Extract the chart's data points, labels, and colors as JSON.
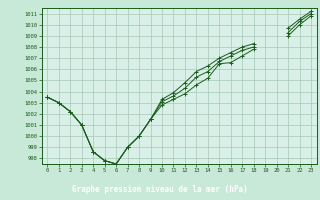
{
  "bg_color": "#c8e8d8",
  "plot_bg_color": "#d8f0e8",
  "grid_color": "#a8c8b8",
  "line_color": "#1a5c1a",
  "title_bg": "#2a6e2a",
  "title_text_color": "#ffffff",
  "title": "Graphe pression niveau de la mer (hPa)",
  "xlim": [
    -0.5,
    23.5
  ],
  "ylim": [
    997.5,
    1011.5
  ],
  "yticks": [
    998,
    999,
    1000,
    1001,
    1002,
    1003,
    1004,
    1005,
    1006,
    1007,
    1008,
    1009,
    1010,
    1011
  ],
  "xticks": [
    0,
    1,
    2,
    3,
    4,
    5,
    6,
    7,
    8,
    9,
    10,
    11,
    12,
    13,
    14,
    15,
    16,
    17,
    18,
    19,
    20,
    21,
    22,
    23
  ],
  "series": [
    [
      1003.5,
      1003.0,
      1002.2,
      1001.0,
      998.6,
      997.8,
      997.5,
      999.0,
      1000.0,
      1001.5,
      1002.8,
      1003.3,
      1003.8,
      1004.6,
      1005.2,
      1006.5,
      1006.6,
      1007.2,
      1007.8,
      null,
      null,
      1009.0,
      1010.0,
      1010.8
    ],
    [
      1003.5,
      1003.0,
      1002.2,
      1001.0,
      998.6,
      997.8,
      997.5,
      999.0,
      1000.0,
      1001.5,
      1003.1,
      1003.6,
      1004.3,
      1005.3,
      1005.8,
      1006.7,
      1007.2,
      1007.7,
      1008.0,
      null,
      null,
      1009.3,
      1010.3,
      1011.0
    ],
    [
      1003.5,
      1003.0,
      1002.2,
      1001.0,
      998.6,
      997.8,
      997.5,
      999.0,
      1000.0,
      1001.5,
      1003.3,
      1003.9,
      1004.8,
      1005.8,
      1006.3,
      1007.0,
      1007.5,
      1008.0,
      1008.3,
      null,
      null,
      1009.7,
      1010.5,
      1011.2
    ]
  ]
}
